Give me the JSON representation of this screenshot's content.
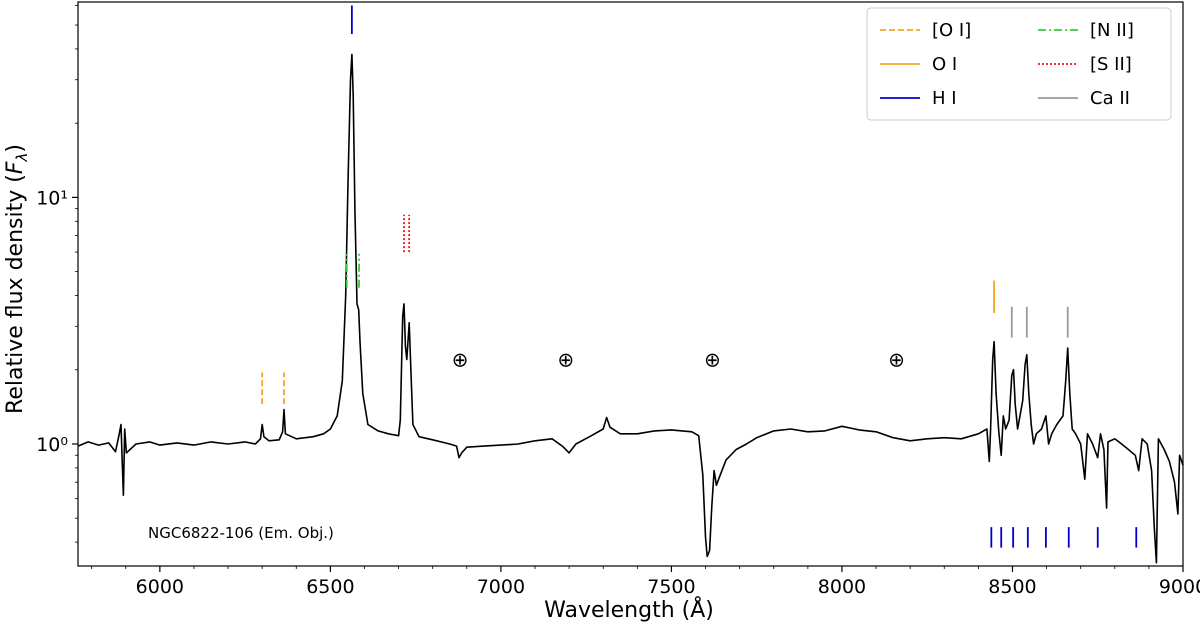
{
  "chart_data": {
    "type": "line",
    "title": "",
    "xlabel": "Wavelength (Å)",
    "ylabel": "Relative flux density (Fλ)",
    "xlim": [
      5760,
      9000
    ],
    "ylim": [
      0.32,
      62
    ],
    "yscale": "log",
    "grid": false,
    "legend_position": "top-right",
    "x_ticks": [
      6000,
      6500,
      7000,
      7500,
      8000,
      8500,
      9000
    ],
    "x_tick_labels": [
      "6000",
      "6500",
      "7000",
      "7500",
      "8000",
      "8500",
      "9000"
    ],
    "y_ticks": [
      1,
      10
    ],
    "y_tick_labels": [
      "10⁰",
      "10¹"
    ],
    "annotation": "NGC6822-106 (Em. Obj.)",
    "telluric_symbol": "⊕",
    "telluric_markers": [
      6880,
      7190,
      7620,
      8160
    ],
    "series": [
      {
        "color": "#000000",
        "points": [
          [
            5760,
            0.98
          ],
          [
            5790,
            1.02
          ],
          [
            5820,
            0.99
          ],
          [
            5850,
            1.01
          ],
          [
            5870,
            0.93
          ],
          [
            5880,
            1.08
          ],
          [
            5886,
            1.2
          ],
          [
            5890,
            0.83
          ],
          [
            5893,
            0.62
          ],
          [
            5897,
            1.15
          ],
          [
            5902,
            0.92
          ],
          [
            5930,
            1.0
          ],
          [
            5970,
            1.02
          ],
          [
            6000,
            0.99
          ],
          [
            6050,
            1.01
          ],
          [
            6100,
            0.99
          ],
          [
            6150,
            1.02
          ],
          [
            6200,
            1.0
          ],
          [
            6250,
            1.02
          ],
          [
            6280,
            1.0
          ],
          [
            6295,
            1.05
          ],
          [
            6300,
            1.2
          ],
          [
            6305,
            1.07
          ],
          [
            6320,
            1.03
          ],
          [
            6350,
            1.04
          ],
          [
            6360,
            1.12
          ],
          [
            6364,
            1.38
          ],
          [
            6368,
            1.1
          ],
          [
            6400,
            1.05
          ],
          [
            6450,
            1.07
          ],
          [
            6480,
            1.1
          ],
          [
            6500,
            1.15
          ],
          [
            6520,
            1.3
          ],
          [
            6535,
            1.8
          ],
          [
            6545,
            4.0
          ],
          [
            6552,
            12.0
          ],
          [
            6559,
            30.0
          ],
          [
            6563,
            38.0
          ],
          [
            6567,
            26.0
          ],
          [
            6572,
            9.0
          ],
          [
            6578,
            3.7
          ],
          [
            6583,
            3.5
          ],
          [
            6587,
            2.6
          ],
          [
            6595,
            1.6
          ],
          [
            6610,
            1.2
          ],
          [
            6640,
            1.13
          ],
          [
            6670,
            1.1
          ],
          [
            6700,
            1.08
          ],
          [
            6705,
            1.25
          ],
          [
            6712,
            3.3
          ],
          [
            6716,
            3.7
          ],
          [
            6720,
            2.5
          ],
          [
            6724,
            2.2
          ],
          [
            6731,
            3.1
          ],
          [
            6735,
            2.2
          ],
          [
            6742,
            1.2
          ],
          [
            6760,
            1.07
          ],
          [
            6800,
            1.04
          ],
          [
            6850,
            1.0
          ],
          [
            6870,
            0.98
          ],
          [
            6877,
            0.88
          ],
          [
            6885,
            0.92
          ],
          [
            6900,
            0.97
          ],
          [
            6950,
            0.98
          ],
          [
            7000,
            0.99
          ],
          [
            7050,
            1.0
          ],
          [
            7100,
            1.03
          ],
          [
            7150,
            1.05
          ],
          [
            7180,
            0.98
          ],
          [
            7200,
            0.92
          ],
          [
            7220,
            1.0
          ],
          [
            7260,
            1.07
          ],
          [
            7300,
            1.15
          ],
          [
            7310,
            1.28
          ],
          [
            7320,
            1.17
          ],
          [
            7350,
            1.1
          ],
          [
            7400,
            1.1
          ],
          [
            7450,
            1.13
          ],
          [
            7500,
            1.14
          ],
          [
            7560,
            1.12
          ],
          [
            7580,
            1.08
          ],
          [
            7592,
            0.75
          ],
          [
            7600,
            0.42
          ],
          [
            7605,
            0.35
          ],
          [
            7612,
            0.37
          ],
          [
            7618,
            0.55
          ],
          [
            7625,
            0.78
          ],
          [
            7632,
            0.68
          ],
          [
            7640,
            0.73
          ],
          [
            7660,
            0.86
          ],
          [
            7690,
            0.95
          ],
          [
            7720,
            1.0
          ],
          [
            7750,
            1.06
          ],
          [
            7800,
            1.13
          ],
          [
            7850,
            1.15
          ],
          [
            7900,
            1.12
          ],
          [
            7950,
            1.13
          ],
          [
            8000,
            1.18
          ],
          [
            8050,
            1.14
          ],
          [
            8100,
            1.12
          ],
          [
            8150,
            1.06
          ],
          [
            8200,
            1.03
          ],
          [
            8250,
            1.05
          ],
          [
            8300,
            1.06
          ],
          [
            8350,
            1.05
          ],
          [
            8400,
            1.1
          ],
          [
            8425,
            1.15
          ],
          [
            8432,
            0.85
          ],
          [
            8436,
            1.15
          ],
          [
            8442,
            2.2
          ],
          [
            8446,
            2.6
          ],
          [
            8452,
            1.6
          ],
          [
            8460,
            1.12
          ],
          [
            8467,
            0.9
          ],
          [
            8473,
            1.3
          ],
          [
            8480,
            1.15
          ],
          [
            8490,
            1.25
          ],
          [
            8498,
            1.9
          ],
          [
            8503,
            2.0
          ],
          [
            8508,
            1.45
          ],
          [
            8515,
            1.15
          ],
          [
            8522,
            1.3
          ],
          [
            8530,
            1.5
          ],
          [
            8537,
            2.1
          ],
          [
            8542,
            2.3
          ],
          [
            8548,
            1.6
          ],
          [
            8555,
            1.2
          ],
          [
            8562,
            1.0
          ],
          [
            8570,
            1.1
          ],
          [
            8585,
            1.15
          ],
          [
            8598,
            1.3
          ],
          [
            8606,
            1.0
          ],
          [
            8615,
            1.1
          ],
          [
            8630,
            1.2
          ],
          [
            8648,
            1.3
          ],
          [
            8656,
            1.8
          ],
          [
            8662,
            2.45
          ],
          [
            8668,
            1.6
          ],
          [
            8675,
            1.15
          ],
          [
            8685,
            1.1
          ],
          [
            8700,
            1.0
          ],
          [
            8712,
            0.72
          ],
          [
            8720,
            1.1
          ],
          [
            8735,
            1.0
          ],
          [
            8750,
            0.88
          ],
          [
            8758,
            1.1
          ],
          [
            8768,
            0.95
          ],
          [
            8776,
            0.55
          ],
          [
            8780,
            1.02
          ],
          [
            8800,
            1.05
          ],
          [
            8820,
            1.0
          ],
          [
            8840,
            0.95
          ],
          [
            8860,
            0.9
          ],
          [
            8870,
            0.78
          ],
          [
            8880,
            1.05
          ],
          [
            8895,
            1.0
          ],
          [
            8908,
            0.78
          ],
          [
            8916,
            0.45
          ],
          [
            8922,
            0.33
          ],
          [
            8928,
            1.05
          ],
          [
            8945,
            0.95
          ],
          [
            8960,
            0.85
          ],
          [
            8975,
            0.7
          ],
          [
            8985,
            0.52
          ],
          [
            8990,
            0.9
          ],
          [
            9000,
            0.82
          ]
        ]
      }
    ],
    "legend": [
      {
        "label": "[O I]",
        "color": "#f5a623",
        "style": "dashed"
      },
      {
        "label": "O I",
        "color": "#f5a623",
        "style": "solid"
      },
      {
        "label": "H I",
        "color": "#0000cc",
        "style": "solid"
      },
      {
        "label": "[N II]",
        "color": "#33cc33",
        "style": "dashdot"
      },
      {
        "label": "[S II]",
        "color": "#e31a1c",
        "style": "dotted"
      },
      {
        "label": "Ca II",
        "color": "#999999",
        "style": "solid"
      }
    ],
    "line_markers": [
      {
        "species": "H I",
        "wavelengths": [
          6563
        ],
        "y_range": [
          46,
          60
        ],
        "style": "solid",
        "color": "#0000cc"
      },
      {
        "species": "[N II]",
        "wavelengths": [
          6548,
          6584
        ],
        "y_range": [
          4.3,
          5.9
        ],
        "style": "dashdot",
        "color": "#33cc33"
      },
      {
        "species": "[S II]",
        "wavelengths": [
          6716,
          6731
        ],
        "y_range": [
          6.0,
          8.5
        ],
        "style": "dotted",
        "color": "#e31a1c"
      },
      {
        "species": "[O I]",
        "wavelengths": [
          6300,
          6364
        ],
        "y_range": [
          1.45,
          1.95
        ],
        "style": "dashed",
        "color": "#f5a623"
      },
      {
        "species": "O I",
        "wavelengths": [
          8446
        ],
        "y_range": [
          3.4,
          4.6
        ],
        "style": "solid",
        "color": "#f5a623"
      },
      {
        "species": "Ca II",
        "wavelengths": [
          8498,
          8542,
          8662
        ],
        "y_range": [
          2.7,
          3.6
        ],
        "style": "solid",
        "color": "#999999"
      },
      {
        "species": "H I",
        "wavelengths": [
          8438,
          8467,
          8502,
          8545,
          8598,
          8665,
          8750,
          8863
        ],
        "y_range": [
          0.38,
          0.46
        ],
        "style": "solid",
        "color": "#0000cc"
      }
    ]
  }
}
